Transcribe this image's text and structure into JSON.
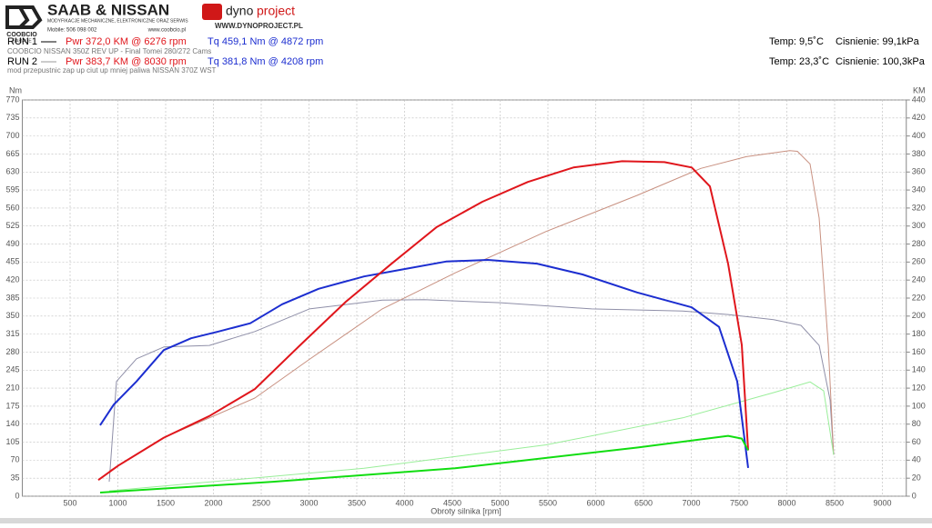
{
  "header": {
    "logo_left": {
      "brand": "COOBCIO",
      "sub": "GARAGE",
      "title": "SAAB & NISSAN",
      "tagline": "MODYFIKACJE MECHANICZNE, ELEKTRONICZNE ORAZ SERWIS",
      "phone": "Mobile: 506 098 002",
      "web": "www.coobcio.pl"
    },
    "logo_right": {
      "name_a": "dyno",
      "name_b": "project",
      "web": "WWW.DYNOPROJECT.PL"
    },
    "runs": [
      {
        "label": "RUN 1",
        "power": "Pwr  372,0 KM @ 6276 rpm",
        "torque": "Tq 459,1 Nm @ 4872 rpm",
        "temp": "Temp: 9,5˚C",
        "pressure": "Cisnienie: 99,1kPa",
        "description": "COOBCIO NISSAN 350Z REV UP - Final Tomei 280/272 Cams"
      },
      {
        "label": "RUN 2",
        "power": "Pwr  383,7 KM @ 8030 rpm",
        "torque": "Tq 381,8 Nm @ 4208 rpm",
        "temp": "Temp: 23,3˚C",
        "pressure": "Cisnienie: 100,3kPa",
        "description": "mod przepustnic zap up ciut up mniej paliwa NISSAN 370Z WST"
      }
    ]
  },
  "chart_data": {
    "type": "line",
    "x_label": "Obroty silnika [rpm]",
    "y_label": "Nm",
    "y2_label": "KM",
    "grid": true,
    "xlim": [
      0,
      9250
    ],
    "xticks": [
      500,
      1000,
      1500,
      2000,
      2500,
      3000,
      3500,
      4000,
      4500,
      5000,
      5500,
      6000,
      6500,
      7000,
      7500,
      8000,
      8500,
      9000
    ],
    "ylim": [
      0,
      770
    ],
    "yticks": [
      0,
      35,
      70,
      105,
      140,
      175,
      210,
      245,
      280,
      315,
      350,
      385,
      420,
      455,
      490,
      525,
      560,
      595,
      630,
      665,
      700,
      735,
      770
    ],
    "y2lim": [
      0,
      440
    ],
    "y2ticks": [
      0,
      20,
      40,
      60,
      80,
      100,
      120,
      140,
      160,
      180,
      200,
      220,
      240,
      260,
      280,
      300,
      320,
      340,
      360,
      380,
      400,
      420,
      440
    ],
    "series": [
      {
        "color": "#8f8fa8",
        "line_width": 1,
        "x": [
          910,
          986,
          1195,
          1481,
          1957,
          2433,
          3005,
          3767,
          4208,
          5005,
          5957,
          6910,
          7386,
          7862,
          8148,
          8338,
          8452,
          8490
        ],
        "values": [
          28,
          223,
          267,
          290,
          293,
          320,
          364,
          381,
          381.8,
          376,
          364,
          360,
          353,
          343,
          332,
          293,
          187,
          81
        ]
      },
      {
        "color": "#c89080",
        "line_width": 1,
        "axis": "y2",
        "x": [
          910,
          1481,
          2433,
          3005,
          3767,
          4529,
          5481,
          6433,
          7100,
          7576,
          8030,
          8110,
          8243,
          8338,
          8433,
          8490
        ],
        "values": [
          28,
          65,
          109,
          152,
          208,
          248,
          294,
          334,
          364,
          377,
          383.7,
          383,
          369,
          309,
          168,
          46
        ]
      },
      {
        "color": "#99ee99",
        "line_width": 1,
        "axis": "y2",
        "x": [
          910,
          3576,
          5481,
          6910,
          7862,
          8243,
          8386,
          8490
        ],
        "values": [
          6,
          31,
          57,
          87,
          115,
          127,
          117,
          46
        ]
      },
      {
        "color": "#1c2ed0",
        "line_width": 2,
        "x": [
          814,
          957,
          1195,
          1481,
          1767,
          2052,
          2386,
          2719,
          3100,
          3576,
          3957,
          4433,
          4872,
          5386,
          5862,
          6433,
          7005,
          7290,
          7481,
          7595
        ],
        "values": [
          138,
          178,
          223,
          284,
          307,
          320,
          336,
          373,
          403,
          427,
          440,
          456,
          459.1,
          452,
          431,
          396,
          367,
          329,
          223,
          55
        ]
      },
      {
        "color": "#e0161c",
        "line_width": 2,
        "axis": "y2",
        "x": [
          795,
          1005,
          1481,
          1957,
          2433,
          2910,
          3386,
          3862,
          4338,
          4814,
          5290,
          5767,
          6276,
          6719,
          7005,
          7195,
          7386,
          7529,
          7595
        ],
        "values": [
          18,
          34,
          65,
          89,
          119,
          168,
          216,
          258,
          299,
          327,
          349,
          365,
          372,
          371,
          365,
          344,
          258,
          168,
          51
        ]
      },
      {
        "color": "#11dd11",
        "line_width": 2,
        "axis": "y2",
        "x": [
          814,
          2624,
          4529,
          6433,
          7386,
          7529,
          7595
        ],
        "values": [
          4,
          16,
          31,
          54,
          67,
          64,
          51
        ]
      }
    ]
  }
}
